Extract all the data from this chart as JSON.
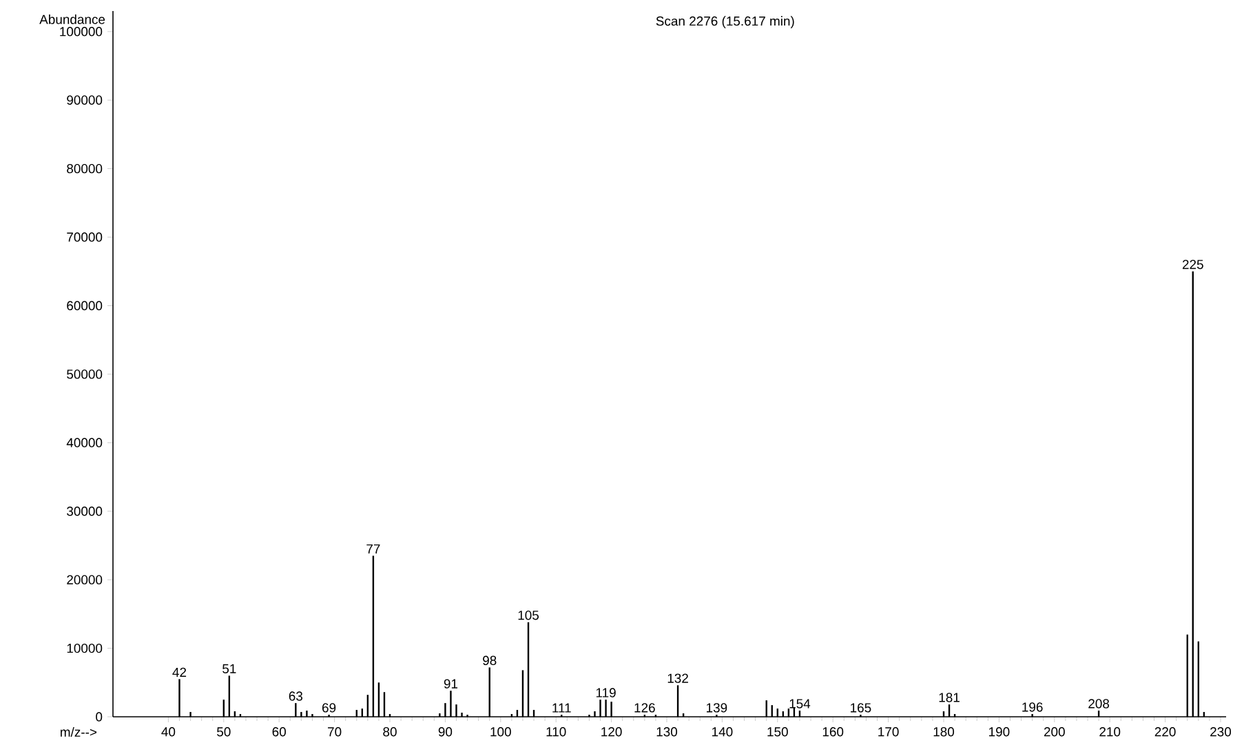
{
  "chart_data": {
    "type": "bar",
    "title": "Scan 2276 (15.617 min)",
    "xlabel": "m/z-->",
    "ylabel": "Abundance",
    "color": "#000000",
    "x": [
      42,
      44,
      50,
      51,
      52,
      53,
      63,
      64,
      65,
      66,
      69,
      74,
      75,
      76,
      77,
      78,
      79,
      80,
      89,
      90,
      91,
      92,
      93,
      94,
      98,
      102,
      103,
      104,
      105,
      106,
      111,
      116,
      117,
      118,
      119,
      120,
      126,
      128,
      132,
      133,
      139,
      148,
      149,
      150,
      151,
      152,
      153,
      154,
      165,
      166,
      180,
      181,
      182,
      196,
      208,
      209,
      224,
      225,
      226,
      227
    ],
    "values": [
      5500,
      700,
      2500,
      6000,
      800,
      400,
      2000,
      700,
      900,
      400,
      300,
      1000,
      1200,
      3200,
      23500,
      5000,
      3600,
      400,
      500,
      2000,
      3800,
      1800,
      600,
      300,
      7200,
      400,
      1000,
      6800,
      13800,
      1000,
      300,
      300,
      800,
      2500,
      2500,
      2200,
      300,
      300,
      4600,
      500,
      300,
      2400,
      1700,
      1200,
      800,
      1200,
      1400,
      900,
      300,
      null,
      800,
      1800,
      400,
      400,
      900,
      null,
      12000,
      65000,
      11000,
      700
    ],
    "annotations": [
      {
        "text": "42",
        "x": 42,
        "y": 5500
      },
      {
        "text": "51",
        "x": 51,
        "y": 6000
      },
      {
        "text": "63",
        "x": 63,
        "y": 2000
      },
      {
        "text": "69",
        "x": 69,
        "y": 300
      },
      {
        "text": "77",
        "x": 77,
        "y": 23500
      },
      {
        "text": "91",
        "x": 91,
        "y": 3800
      },
      {
        "text": "98",
        "x": 98,
        "y": 7200
      },
      {
        "text": "105",
        "x": 105,
        "y": 13800
      },
      {
        "text": "111",
        "x": 111,
        "y": 300
      },
      {
        "text": "119",
        "x": 119,
        "y": 2500
      },
      {
        "text": "126",
        "x": 126,
        "y": 300
      },
      {
        "text": "132",
        "x": 132,
        "y": 4600
      },
      {
        "text": "139",
        "x": 139,
        "y": 300
      },
      {
        "text": "154",
        "x": 154,
        "y": 900
      },
      {
        "text": "165",
        "x": 165,
        "y": 300
      },
      {
        "text": "181",
        "x": 181,
        "y": 1800
      },
      {
        "text": "196",
        "x": 196,
        "y": 400
      },
      {
        "text": "208",
        "x": 208,
        "y": 900
      },
      {
        "text": "225",
        "x": 225,
        "y": 65000
      }
    ],
    "xlim": [
      30,
      231
    ],
    "xticks": [
      40,
      50,
      60,
      70,
      80,
      90,
      100,
      110,
      120,
      130,
      140,
      150,
      160,
      170,
      180,
      190,
      200,
      210,
      220,
      230
    ],
    "ylim": [
      0,
      103000
    ],
    "yticks": [
      0,
      10000,
      20000,
      30000,
      40000,
      50000,
      60000,
      70000,
      80000,
      90000,
      100000
    ],
    "grid": false
  }
}
